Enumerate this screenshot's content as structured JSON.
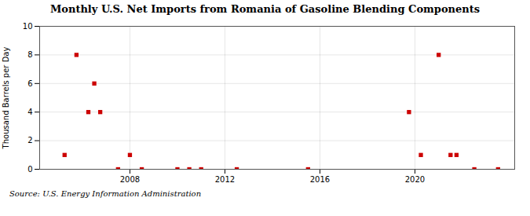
{
  "chart_data": {
    "type": "scatter",
    "title": "Monthly U.S. Net Imports from Romania of Gasoline Blending Components",
    "ylabel": "Thousand Barrels per Day",
    "annotations": [
      "Source: U.S. Energy Information Administration"
    ],
    "x": [
      2005.25,
      2005.75,
      2006.25,
      2006.5,
      2006.75,
      2007.5,
      2008.0,
      2008.5,
      2010.0,
      2010.5,
      2011.0,
      2012.5,
      2015.5,
      2019.75,
      2020.25,
      2021.0,
      2021.5,
      2021.75,
      2022.5,
      2023.5
    ],
    "values": [
      1,
      8,
      4,
      6,
      4,
      0,
      1,
      0,
      0,
      0,
      0,
      0,
      0,
      4,
      1,
      8,
      1,
      1,
      0,
      0
    ],
    "color": "#cc0000",
    "marker": "square",
    "xlim": [
      2004.2,
      2024.2
    ],
    "xticks": [
      2008,
      2012,
      2016,
      2020
    ],
    "ylim": [
      0,
      10
    ],
    "yticks": [
      0,
      2,
      4,
      6,
      8,
      10
    ],
    "grid": true
  }
}
